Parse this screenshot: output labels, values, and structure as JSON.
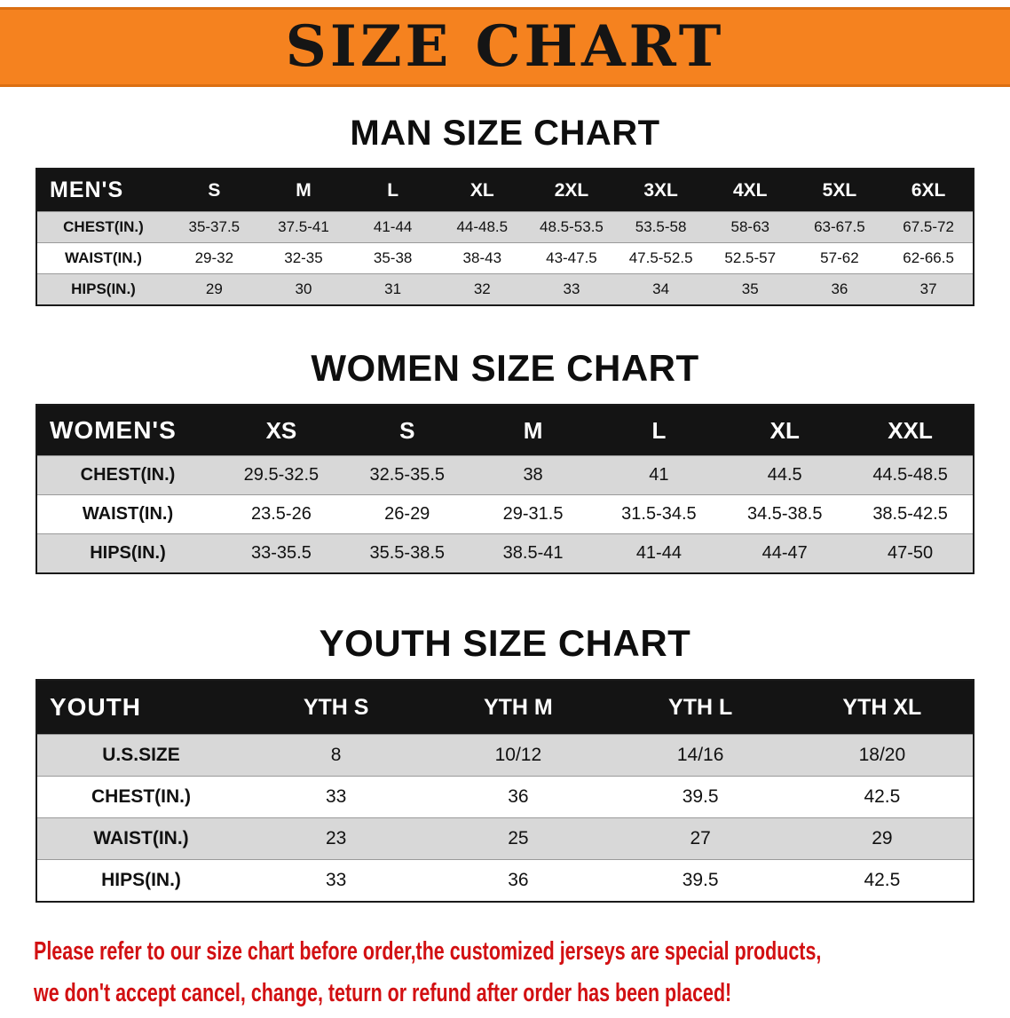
{
  "banner": {
    "title": "SIZE CHART"
  },
  "colors": {
    "banner_bg": "#F5821F",
    "banner_text": "#151515",
    "heading_text": "#0E0E0E",
    "table_header_bg": "#141414",
    "table_header_text": "#FFFFFF",
    "row_stripe": "#D8D8D8",
    "row_white": "#FFFFFF",
    "border": "#1A1A1A",
    "disclaimer_text": "#D21012"
  },
  "sections": [
    {
      "id": "men",
      "heading": "MAN SIZE CHART",
      "table": {
        "label_header": "MEN'S",
        "size_headers": [
          "S",
          "M",
          "L",
          "XL",
          "2XL",
          "3XL",
          "4XL",
          "5XL",
          "6XL"
        ],
        "rows": [
          {
            "label": "CHEST(IN.)",
            "values": [
              "35-37.5",
              "37.5-41",
              "41-44",
              "44-48.5",
              "48.5-53.5",
              "53.5-58",
              "58-63",
              "63-67.5",
              "67.5-72"
            ]
          },
          {
            "label": "WAIST(IN.)",
            "values": [
              "29-32",
              "32-35",
              "35-38",
              "38-43",
              "43-47.5",
              "47.5-52.5",
              "52.5-57",
              "57-62",
              "62-66.5"
            ]
          },
          {
            "label": "HIPS(IN.)",
            "values": [
              "29",
              "30",
              "31",
              "32",
              "33",
              "34",
              "35",
              "36",
              "37"
            ]
          }
        ]
      }
    },
    {
      "id": "women",
      "heading": "WOMEN SIZE CHART",
      "table": {
        "label_header": "WOMEN'S",
        "size_headers": [
          "XS",
          "S",
          "M",
          "L",
          "XL",
          "XXL"
        ],
        "rows": [
          {
            "label": "CHEST(IN.)",
            "values": [
              "29.5-32.5",
              "32.5-35.5",
              "38",
              "41",
              "44.5",
              "44.5-48.5"
            ]
          },
          {
            "label": "WAIST(IN.)",
            "values": [
              "23.5-26",
              "26-29",
              "29-31.5",
              "31.5-34.5",
              "34.5-38.5",
              "38.5-42.5"
            ]
          },
          {
            "label": "HIPS(IN.)",
            "values": [
              "33-35.5",
              "35.5-38.5",
              "38.5-41",
              "41-44",
              "44-47",
              "47-50"
            ]
          }
        ]
      }
    },
    {
      "id": "youth",
      "heading": "YOUTH SIZE CHART",
      "table": {
        "label_header": "YOUTH",
        "size_headers": [
          "YTH S",
          "YTH M",
          "YTH L",
          "YTH XL"
        ],
        "rows": [
          {
            "label": "U.S.SIZE",
            "values": [
              "8",
              "10/12",
              "14/16",
              "18/20"
            ]
          },
          {
            "label": "CHEST(IN.)",
            "values": [
              "33",
              "36",
              "39.5",
              "42.5"
            ]
          },
          {
            "label": "WAIST(IN.)",
            "values": [
              "23",
              "25",
              "27",
              "29"
            ]
          },
          {
            "label": "HIPS(IN.)",
            "values": [
              "33",
              "36",
              "39.5",
              "42.5"
            ]
          }
        ]
      }
    }
  ],
  "disclaimer": {
    "line1": "Please refer to our size chart before order,the customized jerseys are special products,",
    "line2": "we don't accept cancel, change, teturn or refund after order has been placed!"
  }
}
